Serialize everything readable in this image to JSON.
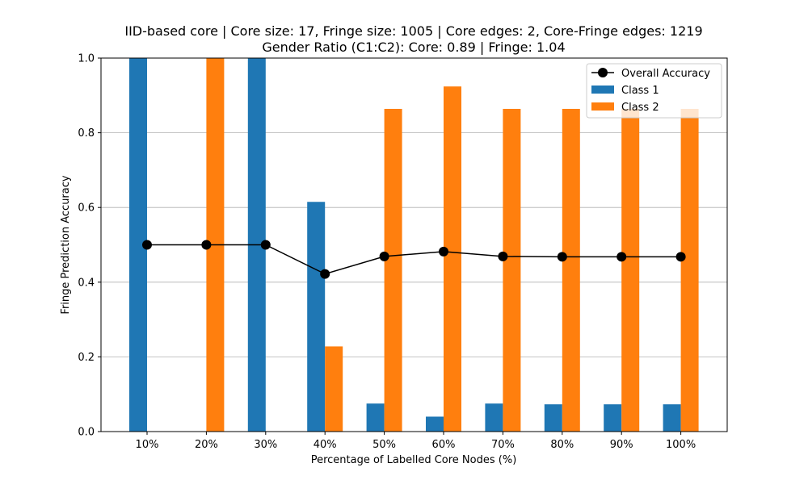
{
  "chart_data": {
    "type": "bar",
    "title": "IID-based core | Core size: 17, Fringe size: 1005 | Core edges: 2, Core-Fringe edges: 1219",
    "subtitle": "Gender Ratio (C1:C2): Core: 0.89 | Fringe: 1.04",
    "xlabel": "Percentage of Labelled Core Nodes (%)",
    "ylabel": "Fringe Prediction Accuracy",
    "ylim": [
      0,
      1
    ],
    "yticks": [
      "0.0",
      "0.2",
      "0.4",
      "0.6",
      "0.8",
      "1.0"
    ],
    "grid": "y",
    "legend_position": "top-right",
    "categories": [
      "10%",
      "20%",
      "30%",
      "40%",
      "50%",
      "60%",
      "70%",
      "80%",
      "90%",
      "100%"
    ],
    "series": [
      {
        "name": "Class 1",
        "kind": "bar",
        "color": "#1f77b4",
        "values": [
          1.0,
          0.0,
          1.0,
          0.615,
          0.075,
          0.04,
          0.075,
          0.073,
          0.073,
          0.073
        ]
      },
      {
        "name": "Class 2",
        "kind": "bar",
        "color": "#ff7f0e",
        "values": [
          0.0,
          1.0,
          0.0,
          0.228,
          0.864,
          0.924,
          0.864,
          0.864,
          0.864,
          0.864
        ]
      },
      {
        "name": "Overall Accuracy",
        "kind": "line",
        "color": "#000000",
        "values": [
          0.5,
          0.5,
          0.5,
          0.422,
          0.469,
          0.482,
          0.469,
          0.468,
          0.468,
          0.468
        ]
      }
    ]
  }
}
